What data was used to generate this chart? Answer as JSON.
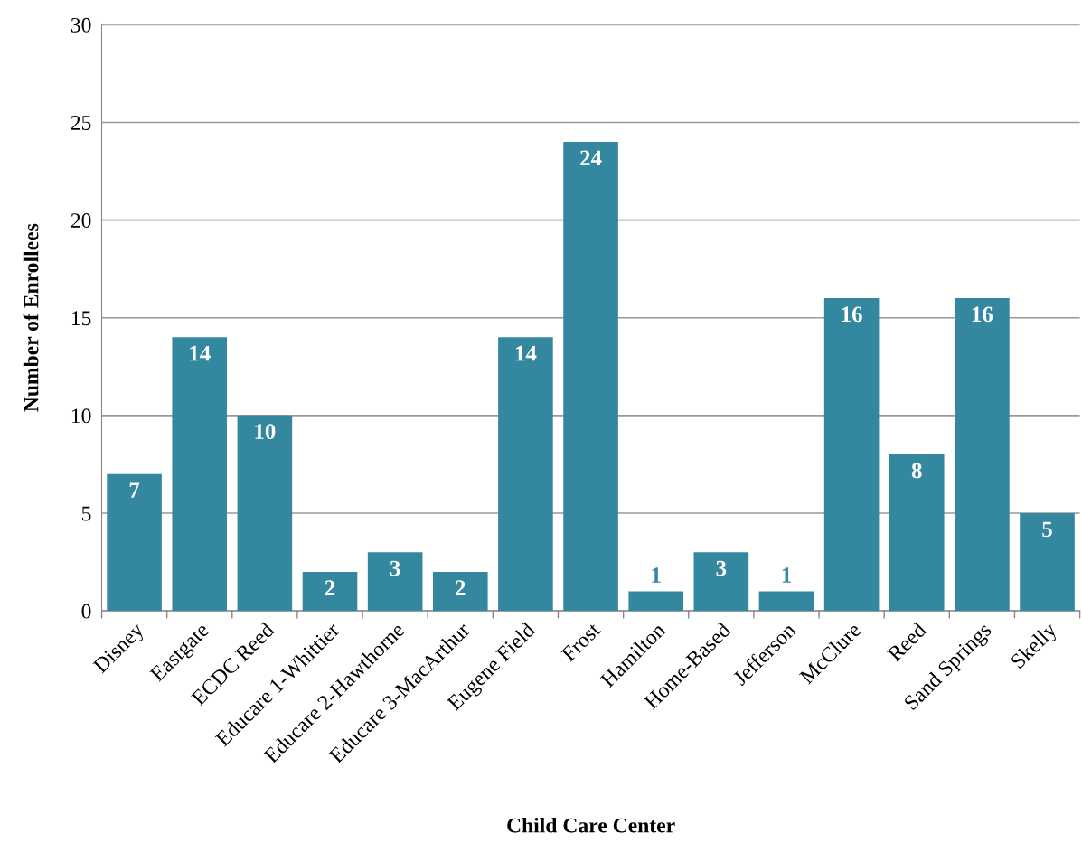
{
  "chart_data": {
    "type": "bar",
    "xlabel": "Child Care Center",
    "ylabel": "Number of Enrollees",
    "categories": [
      "Disney",
      "Eastgate",
      "ECDC Reed",
      "Educare 1-Whittier",
      "Educare 2-Hawthorne",
      "Educare 3-MacArthur",
      "Eugene Field",
      "Frost",
      "Hamilton",
      "Home-Based",
      "Jefferson",
      "McClure",
      "Reed",
      "Sand Springs",
      "Skelly"
    ],
    "values": [
      7,
      14,
      10,
      2,
      3,
      2,
      14,
      24,
      1,
      3,
      1,
      16,
      8,
      16,
      5
    ],
    "color": "#33879e",
    "ylim": [
      0,
      30
    ],
    "yticks": [
      0,
      5,
      10,
      15,
      20,
      25,
      30
    ],
    "grid": "y",
    "data_labels": true,
    "legend": false
  }
}
